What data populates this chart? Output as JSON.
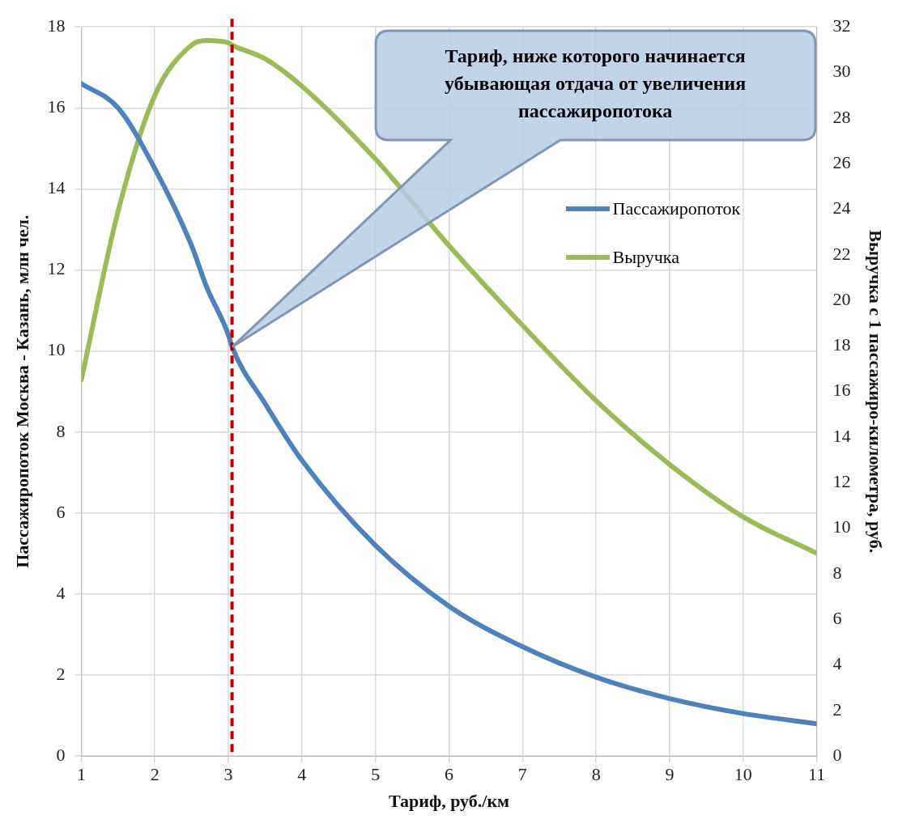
{
  "chart_data": {
    "type": "line",
    "xlabel": "Тариф, руб./км",
    "ylabel": "Пассажиропоток Москва - Казань, млн чел.",
    "y2label": "Выручка с 1 пассажиро-километра, руб.",
    "x": [
      1,
      1.5,
      2,
      2.5,
      2.7,
      3,
      3.05,
      3.5,
      4,
      5,
      6,
      7,
      8,
      9,
      10,
      11
    ],
    "series": [
      {
        "name": "Пассажиропоток",
        "color": "#4f81bd",
        "values": [
          16.6,
          16,
          14.5,
          12.6,
          11.6,
          10.4,
          10.1,
          8.7,
          7.3,
          5.2,
          3.7,
          2.7,
          1.95,
          1.42,
          1.05,
          0.8
        ]
      },
      {
        "name": "Выручка",
        "color": "#9bbb59",
        "axis": "y2",
        "values": [
          16.5,
          23.9,
          29,
          31.2,
          31.4,
          31.3,
          31.2,
          30.6,
          29.4,
          26.2,
          22.4,
          18.9,
          15.6,
          12.8,
          10.5,
          8.9
        ]
      }
    ],
    "xlim": [
      1,
      11
    ],
    "xticks": [
      1,
      2,
      3,
      4,
      5,
      6,
      7,
      8,
      9,
      10,
      11
    ],
    "ylim": [
      0,
      18
    ],
    "yticks": [
      0,
      2,
      4,
      6,
      8,
      10,
      12,
      14,
      16,
      18
    ],
    "y2lim": [
      0,
      32
    ],
    "y2ticks": [
      0,
      2,
      4,
      6,
      8,
      10,
      12,
      14,
      16,
      18,
      20,
      22,
      24,
      26,
      28,
      30,
      32
    ],
    "ref_lines": [
      {
        "axis": "x",
        "value": 3.05,
        "color": "#c00000",
        "line_style": "dashed"
      }
    ],
    "annotations": [
      "Тариф, ниже которого начинается убывающая отдача от увеличения пассажиропотока"
    ],
    "grid": true,
    "legend": "top right",
    "marker": "none",
    "line_style": "solid"
  }
}
